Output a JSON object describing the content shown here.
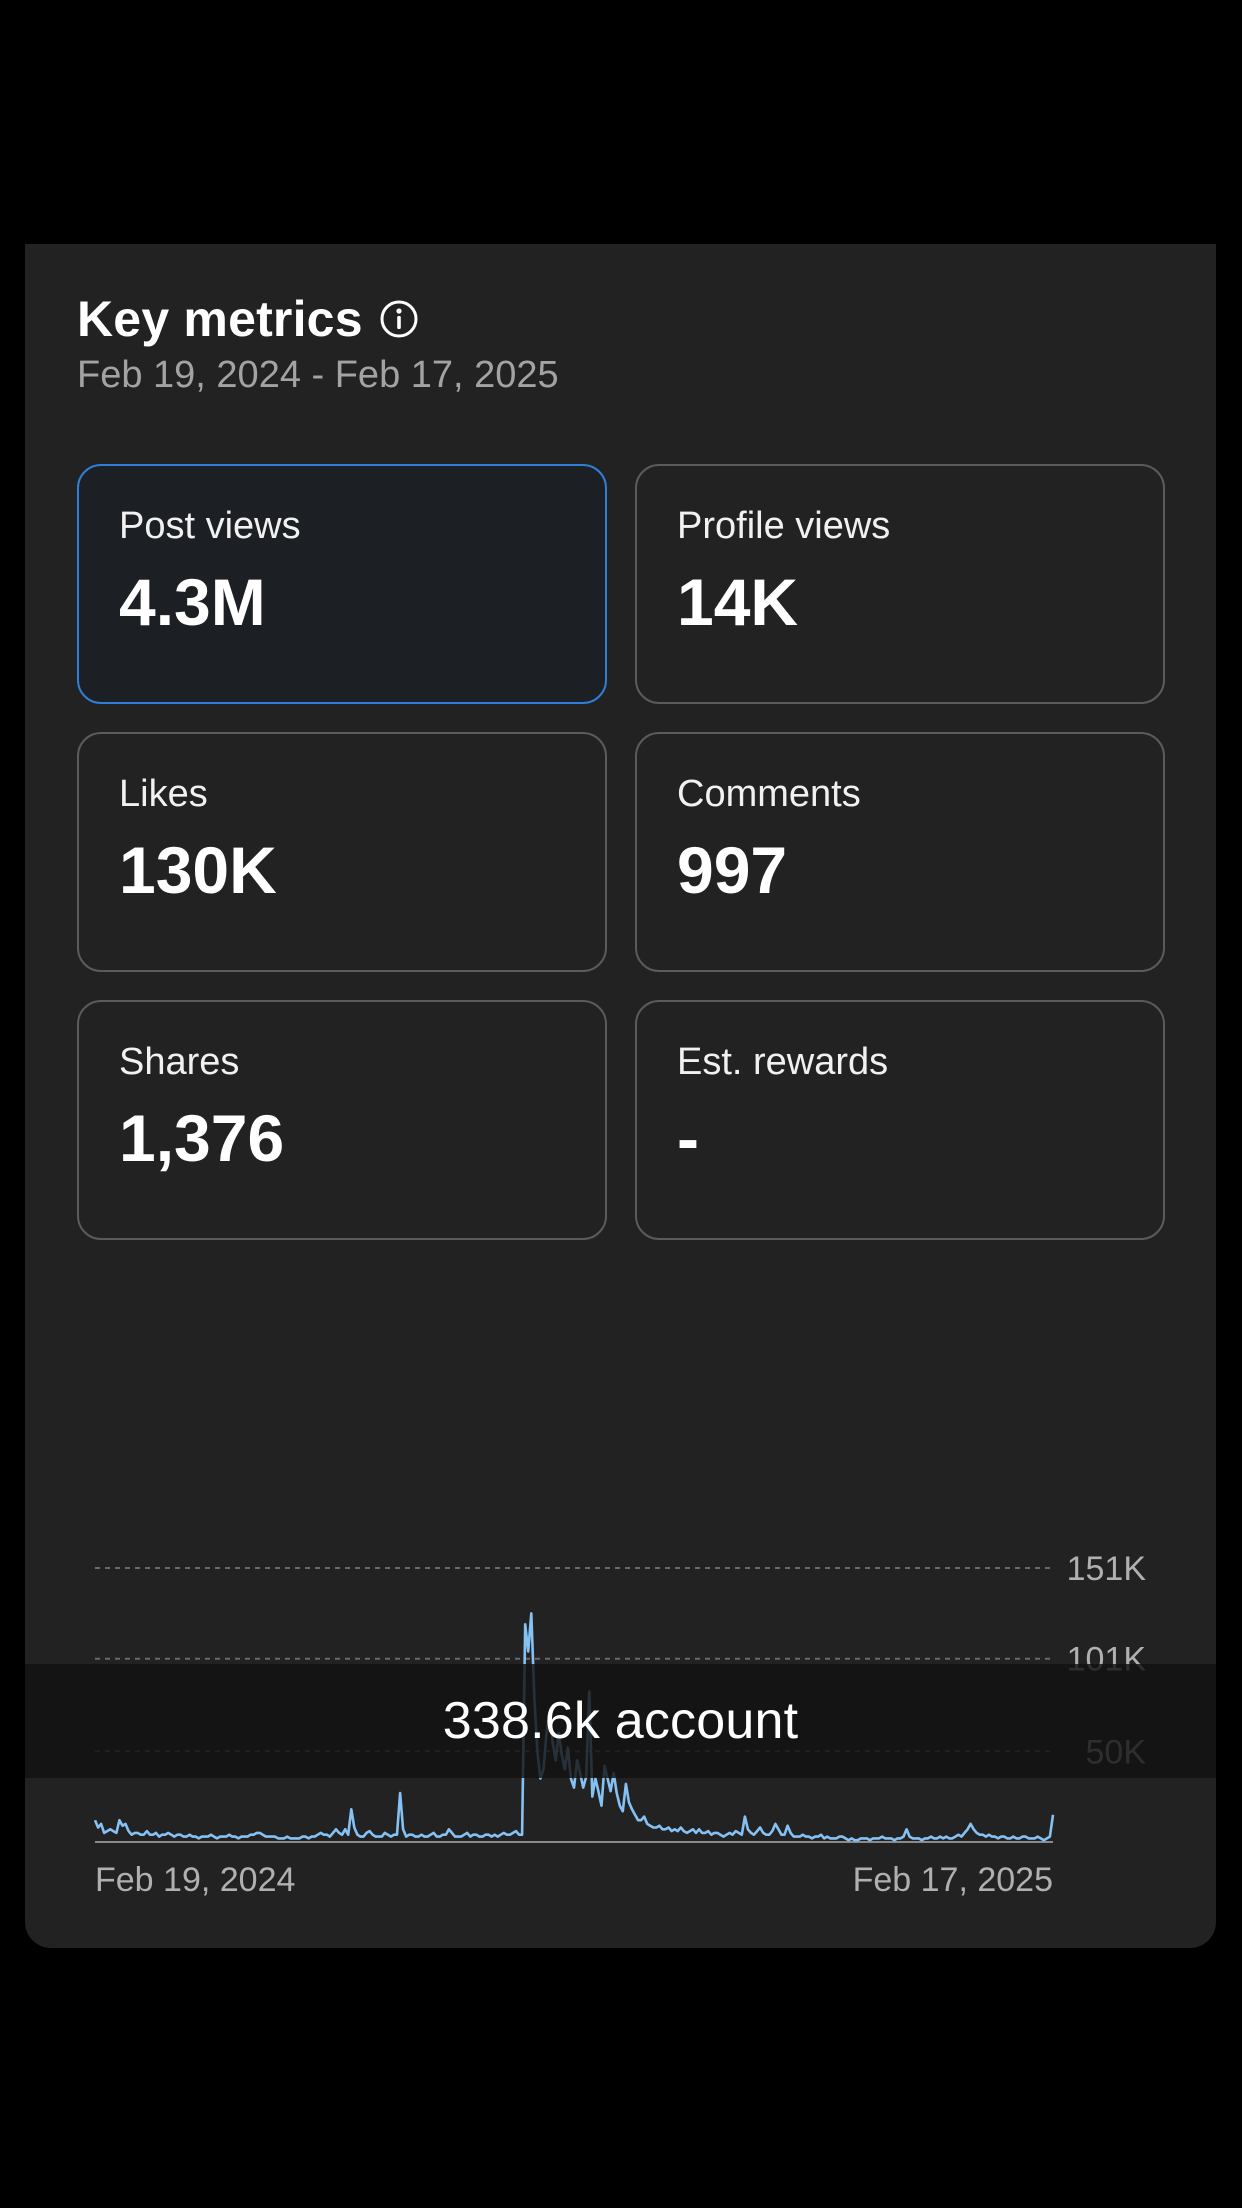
{
  "key_metrics": {
    "title": "Key metrics",
    "info_icon": "info-icon",
    "date_range": "Feb 19, 2024 - Feb 17, 2025"
  },
  "metrics": [
    {
      "label": "Post views",
      "value": "4.3M",
      "selected": true
    },
    {
      "label": "Profile views",
      "value": "14K",
      "selected": false
    },
    {
      "label": "Likes",
      "value": "130K",
      "selected": false
    },
    {
      "label": "Comments",
      "value": "997",
      "selected": false
    },
    {
      "label": "Shares",
      "value": "1,376",
      "selected": false
    },
    {
      "label": "Est. rewards",
      "value": "-",
      "selected": false
    }
  ],
  "overlay": {
    "text": "338.6k account"
  },
  "colors": {
    "accent": "#2d7fd8",
    "line": "#86c1f4",
    "panel": "#222222"
  },
  "chart_data": {
    "type": "line",
    "y_tick_labels": [
      "151K",
      "101K",
      "50K"
    ],
    "y_tick_values": [
      151000,
      101000,
      50000
    ],
    "ylim": [
      0,
      151000
    ],
    "x_tick_labels": [
      "Feb 19, 2024",
      "Feb 17, 2025"
    ],
    "grid": true,
    "series": [
      {
        "values": [
          12000,
          8000,
          10000,
          5000,
          6000,
          7000,
          6000,
          5000,
          12000,
          9000,
          10000,
          6000,
          4000,
          5000,
          5000,
          4000,
          4000,
          6000,
          4000,
          4000,
          5000,
          3000,
          4000,
          4000,
          5000,
          4000,
          3000,
          4000,
          4000,
          3000,
          3000,
          4000,
          3000,
          3000,
          2000,
          3000,
          3000,
          3000,
          4000,
          3000,
          2000,
          3000,
          3000,
          3000,
          4000,
          3000,
          3000,
          2000,
          3000,
          3000,
          3000,
          4000,
          4000,
          5000,
          5000,
          4000,
          3000,
          3000,
          3000,
          3000,
          2000,
          2000,
          2000,
          3000,
          2000,
          2000,
          2000,
          2000,
          3000,
          3000,
          2000,
          3000,
          3000,
          4000,
          5000,
          4000,
          4000,
          3000,
          5000,
          7000,
          5000,
          4000,
          7000,
          4000,
          18000,
          8000,
          4000,
          3000,
          3000,
          5000,
          6000,
          4000,
          3000,
          3000,
          3000,
          5000,
          4000,
          3000,
          4000,
          4000,
          27000,
          7000,
          3000,
          4000,
          4000,
          3000,
          3000,
          4000,
          3000,
          3000,
          4000,
          5000,
          3000,
          3000,
          4000,
          4000,
          7000,
          5000,
          3000,
          3000,
          3000,
          4000,
          5000,
          3000,
          4000,
          4000,
          3000,
          3000,
          4000,
          4000,
          3000,
          4000,
          3000,
          4000,
          5000,
          4000,
          4000,
          5000,
          6000,
          4000,
          4000,
          120000,
          105000,
          126000,
          80000,
          50000,
          35000,
          40000,
          60000,
          72000,
          55000,
          45000,
          60000,
          48000,
          40000,
          52000,
          35000,
          30000,
          45000,
          38000,
          30000,
          36000,
          83000,
          25000,
          35000,
          28000,
          20000,
          42000,
          35000,
          28000,
          38000,
          27000,
          20000,
          17000,
          32000,
          22000,
          18000,
          15000,
          12000,
          12000,
          14000,
          10000,
          9000,
          8000,
          8000,
          9000,
          7000,
          7000,
          8000,
          6000,
          7000,
          6000,
          8000,
          6000,
          5000,
          6000,
          7000,
          5000,
          7000,
          5000,
          5000,
          6000,
          4000,
          5000,
          5000,
          4000,
          3000,
          4000,
          5000,
          4000,
          6000,
          5000,
          4000,
          14000,
          7000,
          5000,
          4000,
          6000,
          8000,
          5000,
          4000,
          4000,
          6000,
          10000,
          7000,
          4000,
          4000,
          9000,
          5000,
          3000,
          3000,
          3000,
          4000,
          3000,
          3000,
          2000,
          3000,
          3000,
          4000,
          2000,
          3000,
          2000,
          2000,
          2000,
          3000,
          3000,
          2000,
          1000,
          2000,
          1000,
          1000,
          2000,
          2000,
          2000,
          1000,
          2000,
          2000,
          2000,
          3000,
          2000,
          2000,
          2000,
          1000,
          2000,
          2000,
          3000,
          7000,
          3000,
          2000,
          2000,
          2000,
          1000,
          2000,
          2000,
          3000,
          2000,
          2000,
          3000,
          2000,
          3000,
          2000,
          2000,
          3000,
          4000,
          3000,
          5000,
          7000,
          10000,
          7000,
          5000,
          4000,
          4000,
          3000,
          4000,
          3000,
          3000,
          2000,
          3000,
          3000,
          2000,
          2000,
          3000,
          2000,
          2000,
          3000,
          3000,
          2000,
          2000,
          2000,
          3000,
          2000,
          1000,
          2000,
          3000,
          15000
        ]
      }
    ]
  }
}
